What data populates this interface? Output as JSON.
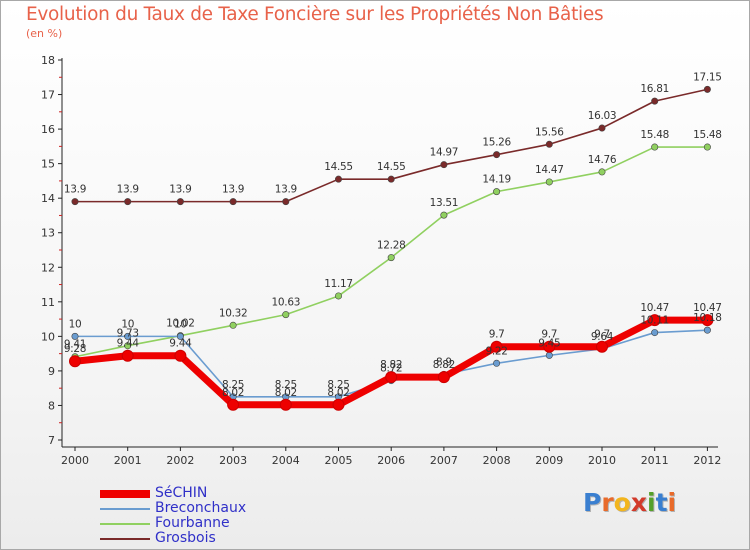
{
  "title": "Evolution du Taux de Taxe Foncière sur les Propriétés Non Bâties",
  "subtitle": "(en %)",
  "logo": {
    "text": "Proxiti",
    "letters": [
      "P",
      "r",
      "o",
      "x",
      "i",
      "t",
      "i"
    ],
    "colors": [
      "#3a7fd0",
      "#e86a2a",
      "#f2b51e",
      "#d23a2a",
      "#55a02a",
      "#3a7fd0",
      "#e86a2a"
    ]
  },
  "chart_data": {
    "type": "line",
    "title": "Evolution du Taux de Taxe Foncière sur les Propriétés Non Bâties",
    "ylabel": "(en %)",
    "xlabel": "",
    "ylim": [
      7,
      18
    ],
    "yticks": [
      "7",
      "8",
      "9",
      "10",
      "11",
      "12",
      "13",
      "14",
      "15",
      "16",
      "17",
      "18"
    ],
    "grid": false,
    "legend": "bottom-left",
    "categories": [
      "2000",
      "2001",
      "2002",
      "2003",
      "2004",
      "2005",
      "2006",
      "2007",
      "2008",
      "2009",
      "2010",
      "2011",
      "2012"
    ],
    "series": [
      {
        "name": "SéCHIN",
        "color": "#ee0000",
        "values": [
          9.28,
          9.44,
          9.44,
          8.02,
          8.02,
          8.02,
          8.82,
          8.82,
          9.7,
          9.7,
          9.7,
          10.47,
          10.47
        ],
        "labels": [
          "9.28",
          "9.44",
          "9.44",
          "8.02",
          "8.02",
          "8.02",
          "8.82",
          "8.82",
          "9.7",
          "9.7",
          "9.7",
          "10.47",
          "10.47"
        ]
      },
      {
        "name": "Breconchaux",
        "color": "#6a9cd0",
        "values": [
          10,
          10,
          10,
          8.25,
          8.25,
          8.25,
          8.72,
          8.9,
          9.22,
          9.45,
          9.64,
          10.11,
          10.18
        ],
        "labels": [
          "10",
          "10",
          "10",
          "8.25",
          "8.25",
          "8.25",
          "8.72",
          "8.9",
          "9.22",
          "9.45",
          "9.64",
          "10.11",
          "10.18"
        ]
      },
      {
        "name": "Fourbanne",
        "color": "#90d060",
        "values": [
          9.41,
          9.73,
          10.02,
          10.32,
          10.63,
          11.17,
          12.28,
          13.51,
          14.19,
          14.47,
          14.76,
          15.48,
          15.48
        ],
        "labels": [
          "9.41",
          "9.73",
          "10.02",
          "10.32",
          "10.63",
          "11.17",
          "12.28",
          "13.51",
          "14.19",
          "14.47",
          "14.76",
          "15.48",
          "15.48"
        ]
      },
      {
        "name": "Grosbois",
        "color": "#7a2a2a",
        "values": [
          13.9,
          13.9,
          13.9,
          13.9,
          13.9,
          14.55,
          14.55,
          14.97,
          15.26,
          15.56,
          16.03,
          16.81,
          17.15
        ],
        "labels": [
          "13.9",
          "13.9",
          "13.9",
          "13.9",
          "13.9",
          "14.55",
          "14.55",
          "14.97",
          "15.26",
          "15.56",
          "16.03",
          "16.81",
          "17.15"
        ]
      }
    ]
  }
}
